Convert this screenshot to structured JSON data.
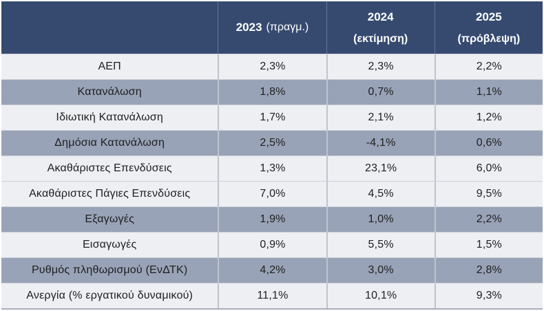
{
  "chart_data": {
    "type": "table",
    "title": "",
    "columns": [
      "",
      "2023 (πραγμ.)",
      "2024 (εκτίμηση)",
      "2025 (πρόβλεψη)"
    ],
    "rows": [
      [
        "ΑΕΠ",
        "2,3%",
        "2,3%",
        "2,2%"
      ],
      [
        "Κατανάλωση",
        "1,8%",
        "0,7%",
        "1,1%"
      ],
      [
        "Ιδιωτική Κατανάλωση",
        "1,7%",
        "2,1%",
        "1,2%"
      ],
      [
        "Δημόσια Κατανάλωση",
        "2,5%",
        "-4,1%",
        "0,6%"
      ],
      [
        "Ακαθάριστες Επενδύσεις",
        "1,3%",
        "23,1%",
        "6,0%"
      ],
      [
        "Ακαθάριστες Πάγιες Επενδύσεις",
        "7,0%",
        "4,5%",
        "9,5%"
      ],
      [
        "Εξαγωγές",
        "1,9%",
        "1,0%",
        "2,2%"
      ],
      [
        "Εισαγωγές",
        "0,9%",
        "5,5%",
        "1,5%"
      ],
      [
        "Ρυθμός πληθωρισμού (ΕνΔΤΚ)",
        "4,2%",
        "3,0%",
        "2,8%"
      ],
      [
        "Ανεργία (% εργατικού δυναμικού)",
        "11,1%",
        "10,1%",
        "9,3%"
      ]
    ]
  },
  "table": {
    "header": {
      "col2023": {
        "year": "2023",
        "note": "(πραγμ.)"
      },
      "col2024": {
        "year": "2024",
        "note": "(εκτίμηση)"
      },
      "col2025": {
        "year": "2025",
        "note": "(πρόβλεψη)"
      }
    },
    "rows": [
      {
        "label": "ΑΕΠ",
        "values": [
          "2,3%",
          "2,3%",
          "2,2%"
        ]
      },
      {
        "label": "Κατανάλωση",
        "values": [
          "1,8%",
          "0,7%",
          "1,1%"
        ]
      },
      {
        "label": "Ιδιωτική Κατανάλωση",
        "values": [
          "1,7%",
          "2,1%",
          "1,2%"
        ]
      },
      {
        "label": "Δημόσια Κατανάλωση",
        "values": [
          "2,5%",
          "-4,1%",
          "0,6%"
        ]
      },
      {
        "label": "Ακαθάριστες Επενδύσεις",
        "values": [
          "1,3%",
          "23,1%",
          "6,0%"
        ]
      },
      {
        "label": "Ακαθάριστες Πάγιες Επενδύσεις",
        "values": [
          "7,0%",
          "4,5%",
          "9,5%"
        ]
      },
      {
        "label": "Εξαγωγές",
        "values": [
          "1,9%",
          "1,0%",
          "2,2%"
        ]
      },
      {
        "label": "Εισαγωγές",
        "values": [
          "0,9%",
          "5,5%",
          "1,5%"
        ]
      },
      {
        "label": "Ρυθμός πληθωρισμού (ΕνΔΤΚ)",
        "values": [
          "4,2%",
          "3,0%",
          "2,8%"
        ]
      },
      {
        "label": "Ανεργία (% εργατικού δυναμικού)",
        "values": [
          "11,1%",
          "10,1%",
          "9,3%"
        ]
      }
    ],
    "colors": {
      "header_bg": "#364a70",
      "header_text": "#ffffff",
      "band_gray": "#99a3b7",
      "band_light": "#edeff3",
      "body_text": "#1e1e1e",
      "divider": "#bfc4cd"
    }
  }
}
